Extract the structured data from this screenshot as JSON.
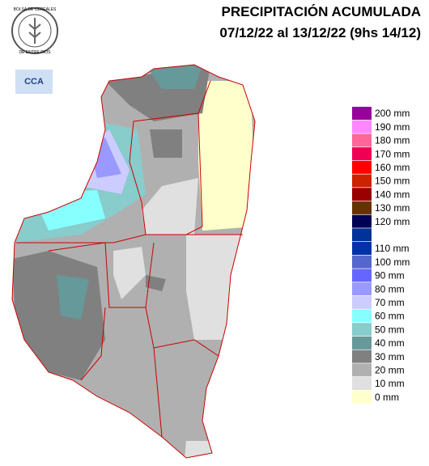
{
  "header": {
    "title": "PRECIPITACIÓN ACUMULADA",
    "subtitle": "07/12/22 al 13/12/22 (9hs 14/12)"
  },
  "logo": {
    "text": "BOLSA DE CEREALES",
    "text2": "DE ENTRE RIOS",
    "badge": "CCA"
  },
  "legend": [
    {
      "label": "200 mm",
      "color": "#990099"
    },
    {
      "label": "190 mm",
      "color": "#ff88ff"
    },
    {
      "label": "180 mm",
      "color": "#ff6699"
    },
    {
      "label": "170 mm",
      "color": "#ee0055"
    },
    {
      "label": "160 mm",
      "color": "#ff0000"
    },
    {
      "label": "150 mm",
      "color": "#cc2200"
    },
    {
      "label": "140 mm",
      "color": "#990000"
    },
    {
      "label": "130 mm",
      "color": "#663300"
    },
    {
      "label": "120 mm",
      "color": "#000055"
    },
    {
      "label": null,
      "color": "#003399"
    },
    {
      "label": "110 mm",
      "color": "#0033aa"
    },
    {
      "label": "100 mm",
      "color": "#5566cc"
    },
    {
      "label": "90 mm",
      "color": "#6666ff"
    },
    {
      "label": "80 mm",
      "color": "#9999ff"
    },
    {
      "label": "70 mm",
      "color": "#ccccff"
    },
    {
      "label": "60 mm",
      "color": "#88ffff"
    },
    {
      "label": "50 mm",
      "color": "#88cccc"
    },
    {
      "label": "40 mm",
      "color": "#669999"
    },
    {
      "label": "30 mm",
      "color": "#808080"
    },
    {
      "label": "20 mm",
      "color": "#b0b0b0"
    },
    {
      "label": "10 mm",
      "color": "#e0e0e0"
    },
    {
      "label": "0 mm",
      "color": "#ffffcc"
    }
  ]
}
